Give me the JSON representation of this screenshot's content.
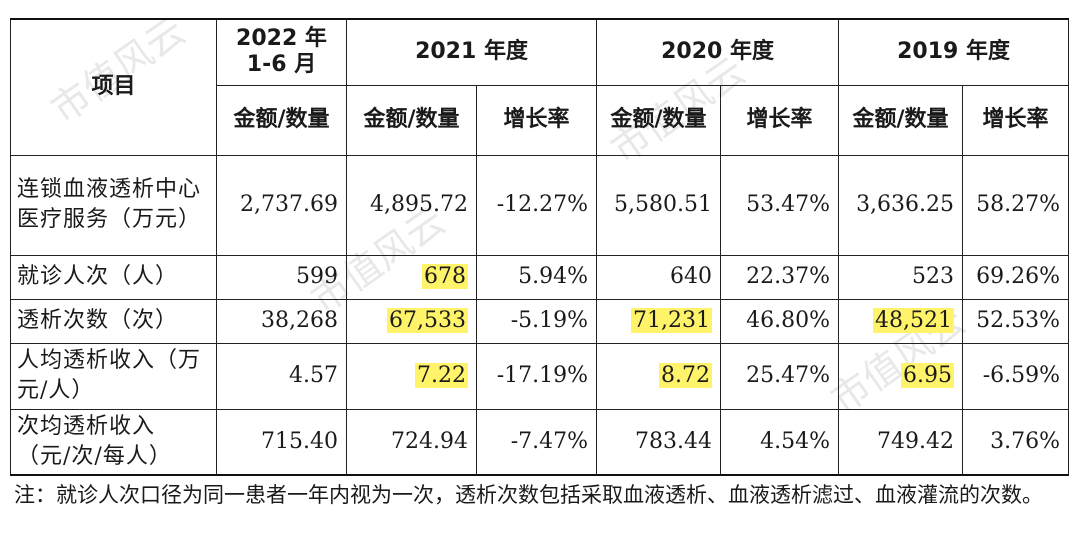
{
  "table": {
    "header": {
      "item": "项目",
      "periods": [
        "2022 年 1-6 月",
        "2021 年度",
        "2020 年度",
        "2019 年度"
      ],
      "amount_label": "金额/数量",
      "growth_label": "增长率"
    },
    "rows": [
      {
        "label": "连锁血液透析中心医疗服务（万元）",
        "cells": [
          "2,737.69",
          "4,895.72",
          "-12.27%",
          "5,580.51",
          "53.47%",
          "3,636.25",
          "58.27%"
        ],
        "highlight": [
          false,
          false,
          false,
          false,
          false,
          false,
          false
        ]
      },
      {
        "label": "就诊人次（人）",
        "cells": [
          "599",
          "678",
          "5.94%",
          "640",
          "22.37%",
          "523",
          "69.26%"
        ],
        "highlight": [
          false,
          true,
          false,
          false,
          false,
          false,
          false
        ]
      },
      {
        "label": "透析次数（次）",
        "cells": [
          "38,268",
          "67,533",
          "-5.19%",
          "71,231",
          "46.80%",
          "48,521",
          "52.53%"
        ],
        "highlight": [
          false,
          true,
          false,
          true,
          false,
          true,
          false
        ]
      },
      {
        "label": "人均透析收入（万元/人）",
        "cells": [
          "4.57",
          "7.22",
          "-17.19%",
          "8.72",
          "25.47%",
          "6.95",
          "-6.59%"
        ],
        "highlight": [
          false,
          true,
          false,
          true,
          false,
          true,
          false
        ]
      },
      {
        "label": "次均透析收入（元/次/每人）",
        "cells": [
          "715.40",
          "724.94",
          "-7.47%",
          "783.44",
          "4.54%",
          "749.42",
          "3.76%"
        ],
        "highlight": [
          false,
          false,
          false,
          false,
          false,
          false,
          false
        ]
      }
    ]
  },
  "note": "注：就诊人次口径为同一患者一年内视为一次，透析次数包括采取血液透析、血液透析滤过、血液灌流的次数。",
  "watermark": "市值风云"
}
